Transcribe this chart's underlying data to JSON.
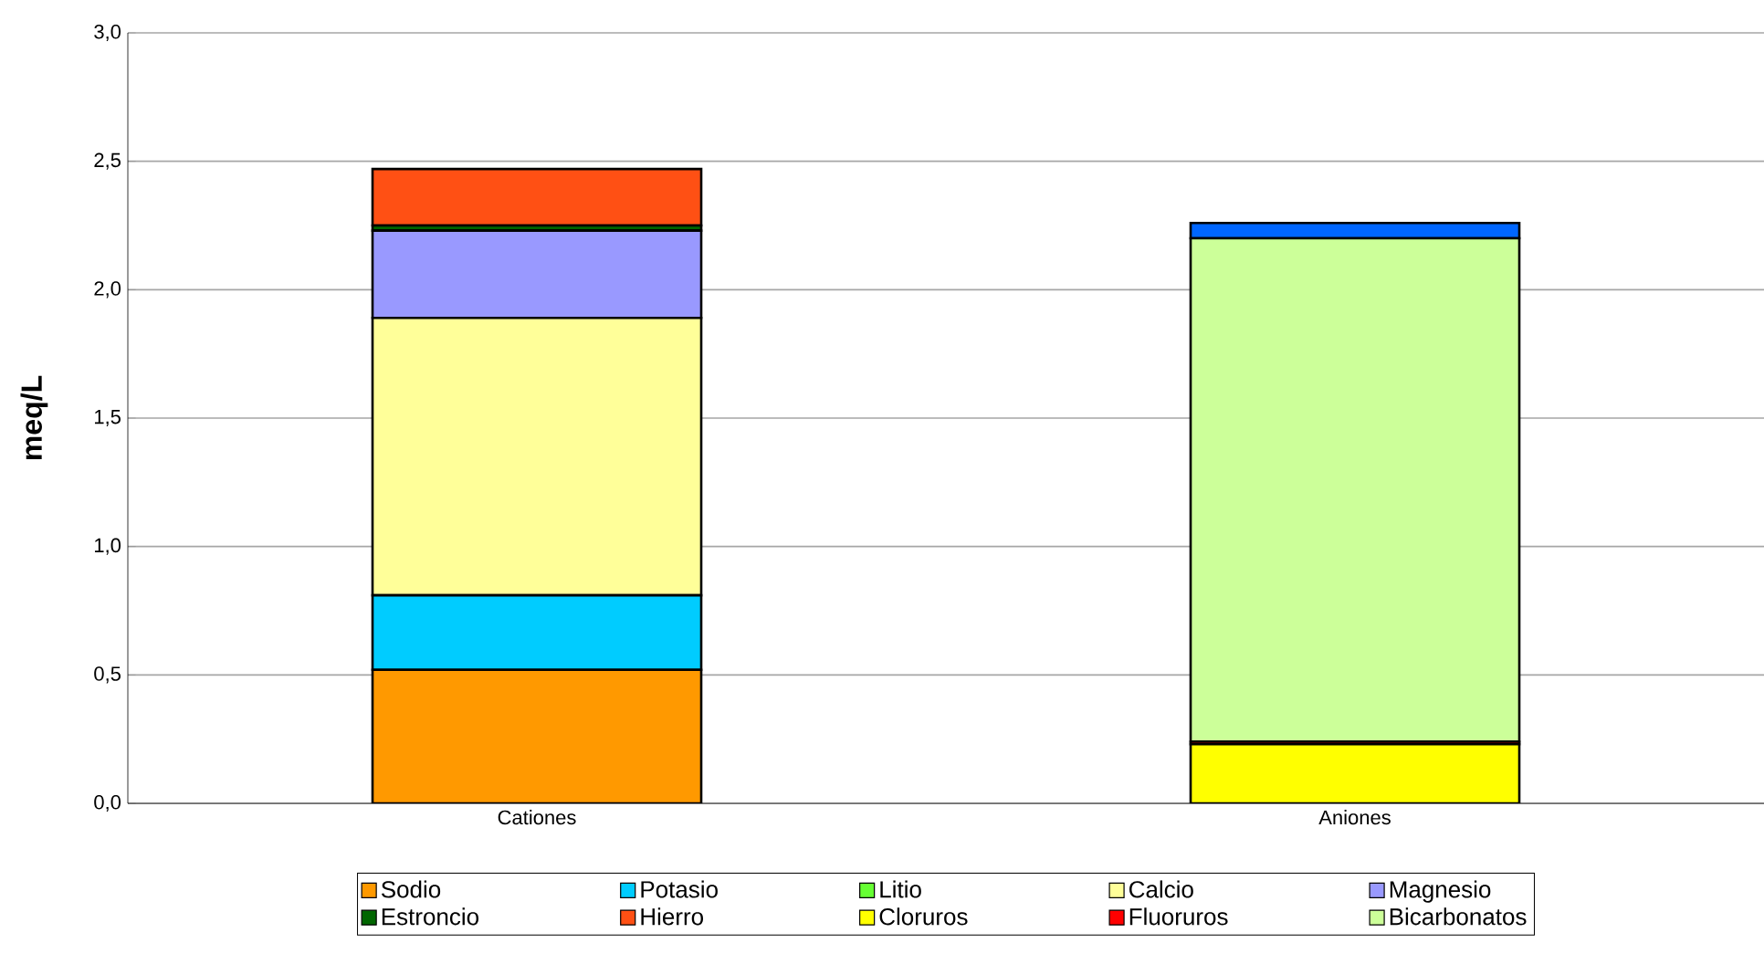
{
  "chart_data": {
    "type": "bar",
    "stacked": true,
    "ylabel": "meq/L",
    "categories": [
      "Cationes",
      "Aniones"
    ],
    "ylim": [
      0,
      3
    ],
    "yticks": [
      {
        "value": 0,
        "label": "0,0"
      },
      {
        "value": 0.5,
        "label": "0,5"
      },
      {
        "value": 1,
        "label": "1,0"
      },
      {
        "value": 1.5,
        "label": "1,5"
      },
      {
        "value": 2,
        "label": "2,0"
      },
      {
        "value": 2.5,
        "label": "2,5"
      },
      {
        "value": 3,
        "label": "3,0"
      }
    ],
    "grid": "y",
    "legend": "bottom",
    "series": [
      {
        "name": "Sodio",
        "color": "#ff9900",
        "values": [
          0.52,
          null
        ]
      },
      {
        "name": "Potasio",
        "color": "#00ccff",
        "values": [
          0.29,
          null
        ]
      },
      {
        "name": "Litio",
        "color": "#66ff33",
        "values": [
          0,
          null
        ]
      },
      {
        "name": "Calcio",
        "color": "#ffff99",
        "values": [
          1.08,
          null
        ]
      },
      {
        "name": "Magnesio",
        "color": "#9999ff",
        "values": [
          0.34,
          null
        ]
      },
      {
        "name": "Estroncio",
        "color": "#006600",
        "values": [
          0.02,
          null
        ]
      },
      {
        "name": "Hierro",
        "color": "#ff5014",
        "values": [
          0.22,
          null
        ]
      },
      {
        "name": "Cloruros",
        "color": "#ffff00",
        "values": [
          null,
          0.23
        ]
      },
      {
        "name": "Fluoruros",
        "color": "#ff0000",
        "values": [
          null,
          0.01
        ]
      },
      {
        "name": "Bicarbonatos",
        "color": "#ccff99",
        "values": [
          null,
          1.96
        ]
      },
      {
        "color": "#0066ff",
        "values": [
          null,
          0.06
        ]
      }
    ]
  }
}
